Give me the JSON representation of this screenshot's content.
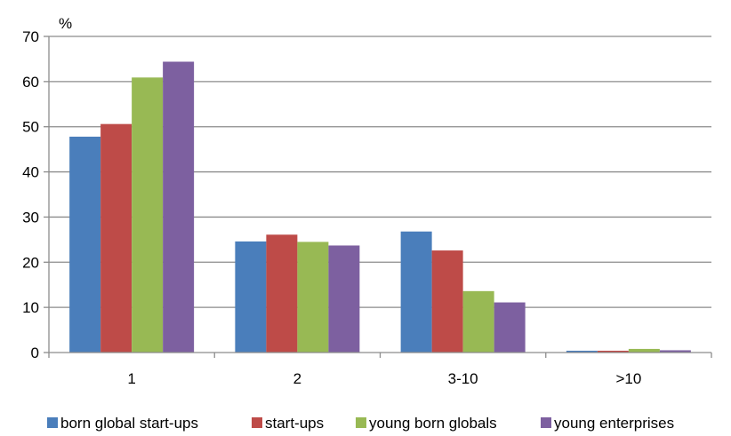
{
  "chart_data": {
    "type": "bar",
    "ylabel": "%",
    "ylim": [
      0,
      70
    ],
    "yticks": [
      0,
      10,
      20,
      30,
      40,
      50,
      60,
      70
    ],
    "grid": true,
    "legend_position": "bottom",
    "categories": [
      "1",
      "2",
      "3-10",
      ">10"
    ],
    "series": [
      {
        "name": "born global start-ups",
        "color": "#4a7ebb",
        "values": [
          47.8,
          24.6,
          26.8,
          0.4
        ]
      },
      {
        "name": "start-ups",
        "color": "#be4b48",
        "values": [
          50.6,
          26.1,
          22.6,
          0.4
        ]
      },
      {
        "name": "young born globals",
        "color": "#98b954",
        "values": [
          60.9,
          24.5,
          13.6,
          0.8
        ]
      },
      {
        "name": "young enterprises",
        "color": "#7d60a0",
        "values": [
          64.4,
          23.7,
          11.1,
          0.5
        ]
      }
    ]
  }
}
